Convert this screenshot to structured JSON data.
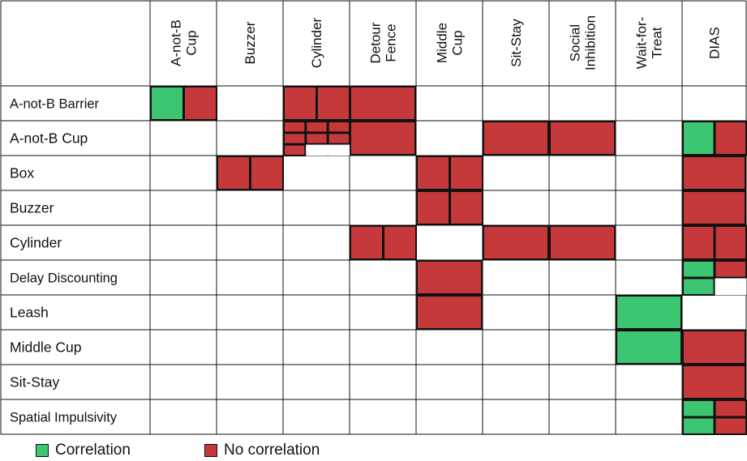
{
  "colors": {
    "correlation": "#3cc671",
    "no_correlation": "#c6393b",
    "grid": "#111111",
    "background": "#ffffff"
  },
  "columns": [
    "A-not-B\nCup",
    "Buzzer",
    "Cylinder",
    "Detour\nFence",
    "Middle\nCup",
    "Sit-Stay",
    "Social\nInhibition",
    "Wait-for-\nTreat",
    "DIAS"
  ],
  "rows": [
    "A-not-B Barrier",
    "A-not-B Cup",
    "Box",
    "Buzzer",
    "Cylinder",
    "Delay Discounting",
    "Leash",
    "Middle Cup",
    "Sit-Stay",
    "Spatial Impulsivity"
  ],
  "cells": [
    {
      "row": 0,
      "col": 0,
      "kind": "v2",
      "fill": [
        "G",
        "R"
      ]
    },
    {
      "row": 0,
      "col": 2,
      "kind": "v2",
      "fill": [
        "R",
        "R"
      ]
    },
    {
      "row": 0,
      "col": 3,
      "kind": "full",
      "fill": [
        "R"
      ]
    },
    {
      "row": 1,
      "col": 2,
      "kind": "grid9",
      "fill": [
        "R",
        "R",
        "R",
        "R",
        "R",
        "R",
        "R",
        "W",
        "W"
      ]
    },
    {
      "row": 1,
      "col": 3,
      "kind": "full",
      "fill": [
        "R"
      ]
    },
    {
      "row": 1,
      "col": 5,
      "kind": "full",
      "fill": [
        "R"
      ]
    },
    {
      "row": 1,
      "col": 6,
      "kind": "full",
      "fill": [
        "R"
      ]
    },
    {
      "row": 1,
      "col": 8,
      "kind": "v2",
      "fill": [
        "G",
        "R"
      ]
    },
    {
      "row": 2,
      "col": 1,
      "kind": "v2",
      "fill": [
        "R",
        "R"
      ]
    },
    {
      "row": 2,
      "col": 4,
      "kind": "v2",
      "fill": [
        "R",
        "R"
      ]
    },
    {
      "row": 2,
      "col": 8,
      "kind": "full",
      "fill": [
        "R"
      ]
    },
    {
      "row": 3,
      "col": 4,
      "kind": "v2",
      "fill": [
        "R",
        "R"
      ]
    },
    {
      "row": 3,
      "col": 8,
      "kind": "full",
      "fill": [
        "R"
      ]
    },
    {
      "row": 4,
      "col": 3,
      "kind": "v2",
      "fill": [
        "R",
        "R"
      ]
    },
    {
      "row": 4,
      "col": 5,
      "kind": "full",
      "fill": [
        "R"
      ]
    },
    {
      "row": 4,
      "col": 6,
      "kind": "full",
      "fill": [
        "R"
      ]
    },
    {
      "row": 4,
      "col": 8,
      "kind": "v2",
      "fill": [
        "R",
        "R"
      ]
    },
    {
      "row": 5,
      "col": 4,
      "kind": "full",
      "fill": [
        "R"
      ]
    },
    {
      "row": 5,
      "col": 8,
      "kind": "q4",
      "fill": [
        "G",
        "R",
        "G",
        "W"
      ]
    },
    {
      "row": 6,
      "col": 4,
      "kind": "full",
      "fill": [
        "R"
      ]
    },
    {
      "row": 6,
      "col": 7,
      "kind": "full",
      "fill": [
        "G"
      ]
    },
    {
      "row": 7,
      "col": 7,
      "kind": "full",
      "fill": [
        "G"
      ]
    },
    {
      "row": 7,
      "col": 8,
      "kind": "full",
      "fill": [
        "R"
      ]
    },
    {
      "row": 8,
      "col": 8,
      "kind": "full",
      "fill": [
        "R"
      ]
    },
    {
      "row": 9,
      "col": 8,
      "kind": "q4",
      "fill": [
        "G",
        "R",
        "G",
        "R"
      ]
    }
  ],
  "legend": [
    {
      "key": "correlation",
      "label": "Correlation"
    },
    {
      "key": "no_correlation",
      "label": "No correlation"
    }
  ]
}
